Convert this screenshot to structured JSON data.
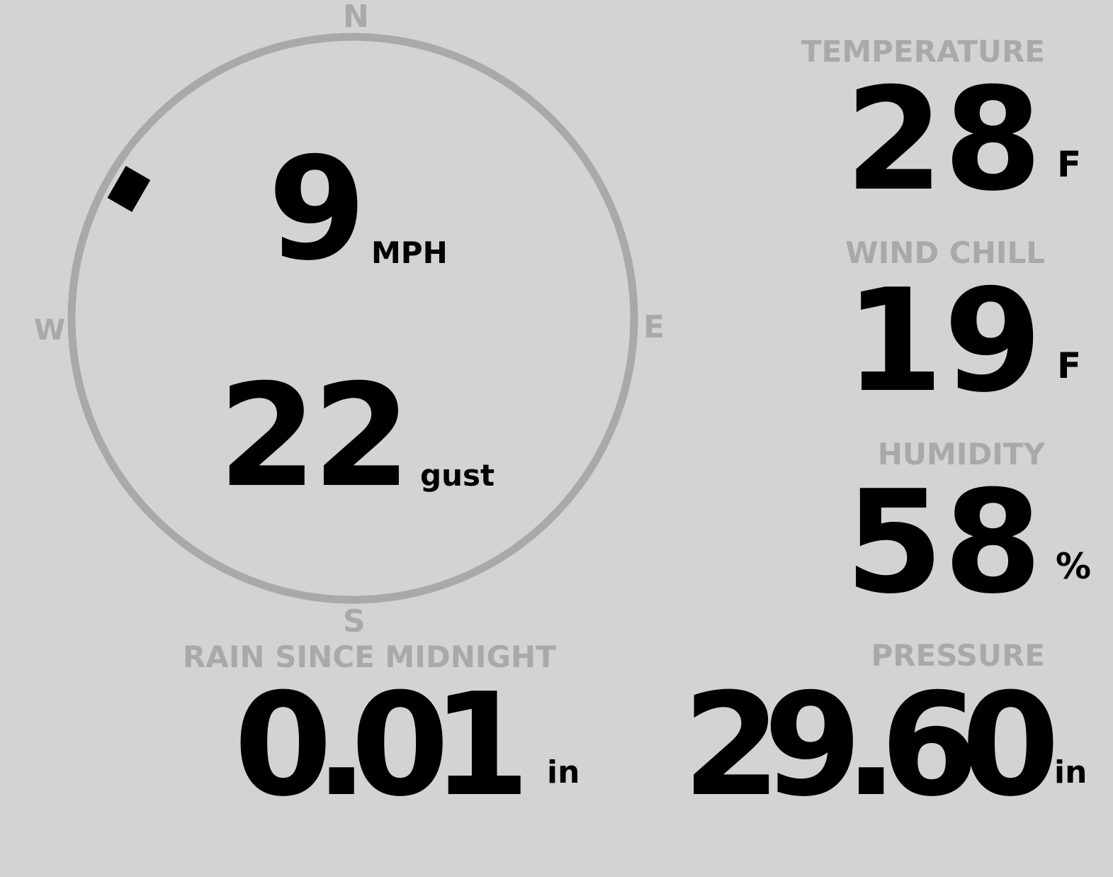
{
  "wind": {
    "speed": "9",
    "speed_unit": "MPH",
    "gust": "22",
    "gust_label": "gust",
    "direction_deg": 300,
    "compass": {
      "n": "N",
      "e": "E",
      "s": "S",
      "w": "W"
    }
  },
  "temperature": {
    "label": "TEMPERATURE",
    "value": "28",
    "unit": "F"
  },
  "wind_chill": {
    "label": "WIND CHILL",
    "value": "19",
    "unit": "F"
  },
  "humidity": {
    "label": "HUMIDITY",
    "value": "58",
    "unit": "%"
  },
  "rain": {
    "label": "RAIN SINCE MIDNIGHT",
    "value": "0.01",
    "unit": "in"
  },
  "pressure": {
    "label": "PRESSURE",
    "value": "29.60",
    "unit": "in"
  },
  "colors": {
    "background": "#d3d3d3",
    "label": "#a9a9a9",
    "value": "#000000"
  }
}
